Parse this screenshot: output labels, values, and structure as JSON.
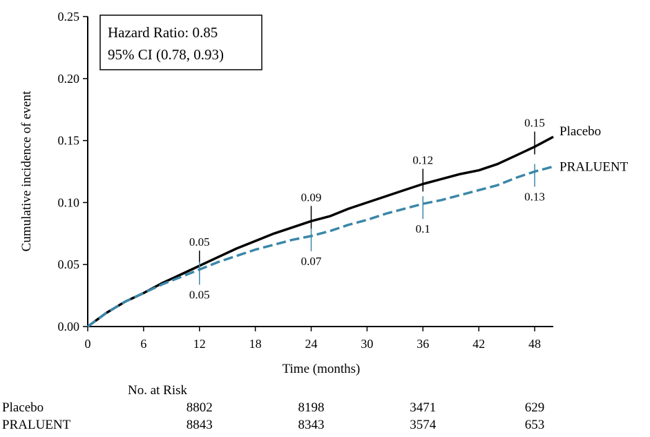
{
  "chart_data": {
    "type": "line",
    "xlabel": "Time (months)",
    "ylabel": "Cumulative incidence of event",
    "xlim": [
      0,
      50
    ],
    "ylim": [
      0,
      0.25
    ],
    "x_ticks": [
      "0",
      "6",
      "12",
      "18",
      "24",
      "30",
      "36",
      "42",
      "48"
    ],
    "y_ticks": [
      "0.00",
      "0.05",
      "0.10",
      "0.15",
      "0.20",
      "0.25"
    ],
    "annotation": {
      "line1": "Hazard Ratio: 0.85",
      "line2": "95% CI (0.78, 0.93)"
    },
    "series": [
      {
        "name": "Placebo",
        "color": "#000000",
        "style": "solid",
        "x": [
          0,
          2,
          4,
          6,
          8,
          10,
          12,
          14,
          16,
          18,
          20,
          22,
          24,
          26,
          28,
          30,
          32,
          34,
          36,
          38,
          40,
          42,
          44,
          46,
          48,
          50
        ],
        "y": [
          0,
          0.011,
          0.02,
          0.027,
          0.035,
          0.042,
          0.049,
          0.056,
          0.063,
          0.069,
          0.075,
          0.08,
          0.085,
          0.089,
          0.095,
          0.1,
          0.105,
          0.11,
          0.115,
          0.119,
          0.123,
          0.126,
          0.131,
          0.138,
          0.145,
          0.153
        ],
        "marks": [
          {
            "x": 12,
            "label": "0.05"
          },
          {
            "x": 24,
            "label": "0.09"
          },
          {
            "x": 36,
            "label": "0.12"
          },
          {
            "x": 48,
            "label": "0.15"
          }
        ]
      },
      {
        "name": "PRALUENT",
        "color": "#3a87a8",
        "style": "dashed",
        "x": [
          0,
          2,
          4,
          6,
          8,
          10,
          12,
          14,
          16,
          18,
          20,
          22,
          24,
          26,
          28,
          30,
          32,
          34,
          36,
          38,
          40,
          42,
          44,
          46,
          48,
          50
        ],
        "y": [
          0,
          0.011,
          0.02,
          0.027,
          0.034,
          0.04,
          0.046,
          0.052,
          0.057,
          0.062,
          0.066,
          0.07,
          0.073,
          0.077,
          0.082,
          0.086,
          0.091,
          0.095,
          0.099,
          0.102,
          0.106,
          0.11,
          0.114,
          0.12,
          0.125,
          0.129
        ],
        "marks": [
          {
            "x": 12,
            "label": "0.05"
          },
          {
            "x": 24,
            "label": "0.07"
          },
          {
            "x": 36,
            "label": "0.1"
          },
          {
            "x": 48,
            "label": "0.13"
          }
        ]
      }
    ]
  },
  "risk_table": {
    "title": "No. at Risk",
    "months": [
      12,
      24,
      36,
      48
    ],
    "rows": [
      {
        "label": "Placebo",
        "values": [
          "8802",
          "8198",
          "3471",
          "629"
        ]
      },
      {
        "label": "PRALUENT",
        "values": [
          "8843",
          "8343",
          "3574",
          "653"
        ]
      }
    ]
  }
}
